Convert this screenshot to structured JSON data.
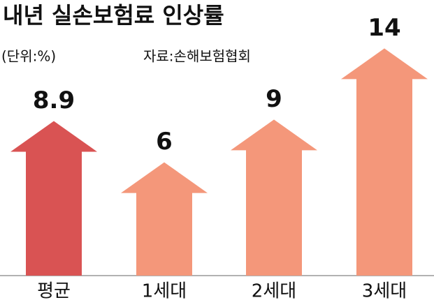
{
  "chart_data": {
    "type": "arrow-bar",
    "title": "내년 실손보험료 인상률",
    "unit": "(단위:%)",
    "source": "자료:손해보험협회",
    "categories": [
      "평균",
      "1세대",
      "2세대",
      "3세대"
    ],
    "values": [
      8.9,
      6,
      9,
      14
    ],
    "colors": [
      "#d95353",
      "#f4977a",
      "#f4977a",
      "#f4977a"
    ]
  }
}
